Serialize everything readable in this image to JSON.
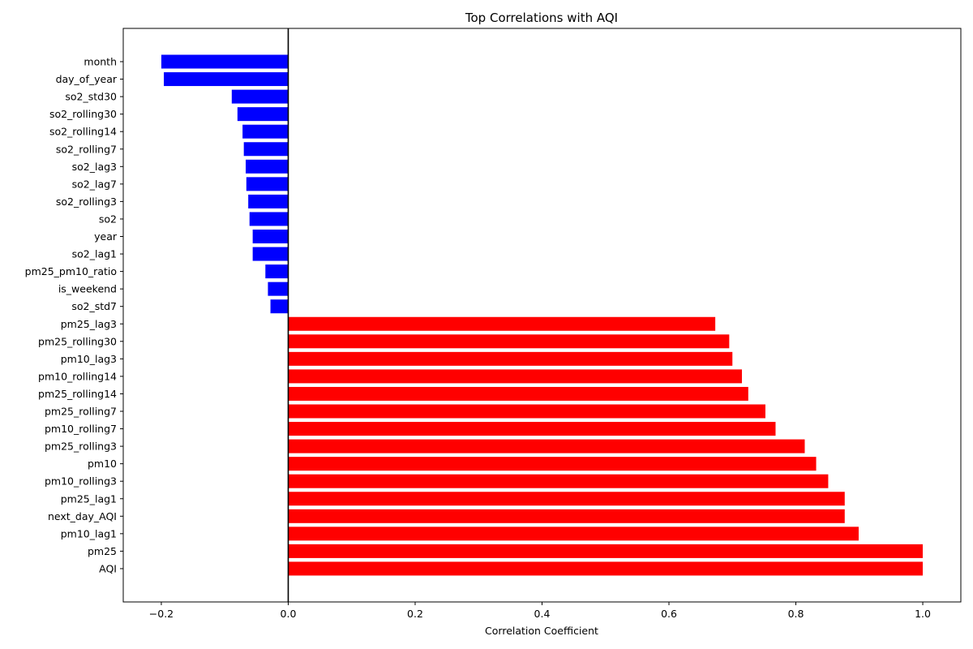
{
  "chart_data": {
    "type": "bar",
    "orientation": "horizontal",
    "title": "Top Correlations with AQI",
    "xlabel": "Correlation Coefficient",
    "ylabel": "",
    "xlim": [
      -0.26,
      1.06
    ],
    "xticks": [
      -0.2,
      0.0,
      0.2,
      0.4,
      0.6,
      0.8,
      1.0
    ],
    "xtick_labels": [
      "−0.2",
      "0.0",
      "0.2",
      "0.4",
      "0.6",
      "0.8",
      "1.0"
    ],
    "grid": false,
    "legend": "none",
    "colors": {
      "positive": "#ff0000",
      "negative": "#0000ff",
      "zero_line": "#000000"
    },
    "categories": [
      "month",
      "day_of_year",
      "so2_std30",
      "so2_rolling30",
      "so2_rolling14",
      "so2_rolling7",
      "so2_lag3",
      "so2_lag7",
      "so2_rolling3",
      "so2",
      "year",
      "so2_lag1",
      "pm25_pm10_ratio",
      "is_weekend",
      "so2_std7",
      "pm25_lag3",
      "pm25_rolling30",
      "pm10_lag3",
      "pm10_rolling14",
      "pm25_rolling14",
      "pm25_rolling7",
      "pm10_rolling7",
      "pm25_rolling3",
      "pm10",
      "pm10_rolling3",
      "pm25_lag1",
      "next_day_AQI",
      "pm10_lag1",
      "pm25",
      "AQI"
    ],
    "values": [
      -0.2,
      -0.196,
      -0.089,
      -0.08,
      -0.072,
      -0.07,
      -0.067,
      -0.066,
      -0.063,
      -0.061,
      -0.056,
      -0.056,
      -0.036,
      -0.032,
      -0.028,
      0.673,
      0.695,
      0.7,
      0.715,
      0.725,
      0.752,
      0.768,
      0.814,
      0.832,
      0.851,
      0.877,
      0.877,
      0.899,
      1.0,
      1.0
    ]
  }
}
